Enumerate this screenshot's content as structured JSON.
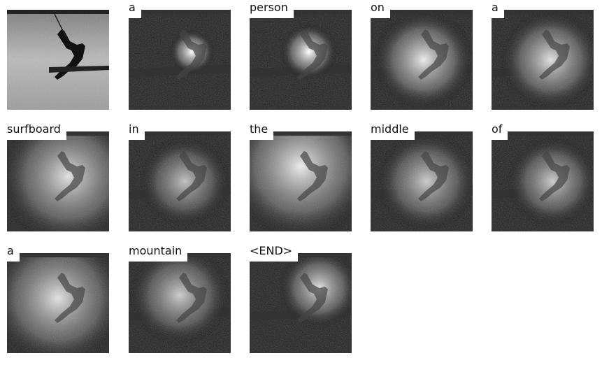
{
  "caption_words": [
    "a",
    "person",
    "on",
    "a",
    "surfboard",
    "in",
    "the",
    "middle",
    "of",
    "a",
    "mountain",
    "<END>"
  ]
}
